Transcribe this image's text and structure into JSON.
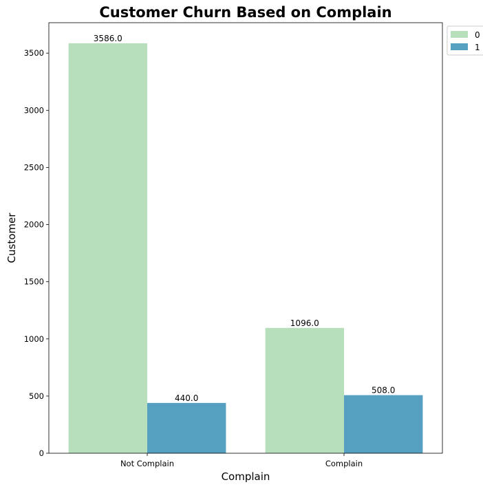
{
  "chart_data": {
    "type": "bar",
    "title": "Customer Churn Based on Complain",
    "xlabel": "Complain",
    "ylabel": "Customer",
    "categories": [
      "Not Complain",
      "Complain"
    ],
    "series": [
      {
        "name": "0",
        "values": [
          3586.0,
          1096.0
        ],
        "color": "#b8dfbc"
      },
      {
        "name": "1",
        "values": [
          440.0,
          508.0
        ],
        "color": "#55a0c0"
      }
    ],
    "data_labels": [
      [
        "3586.0",
        "1096.0"
      ],
      [
        "440.0",
        "508.0"
      ]
    ],
    "ylim": [
      0,
      3766
    ],
    "yticks": [
      0,
      500,
      1000,
      1500,
      2000,
      2500,
      3000,
      3500
    ],
    "grid": false,
    "legend": "outside-top-right"
  }
}
